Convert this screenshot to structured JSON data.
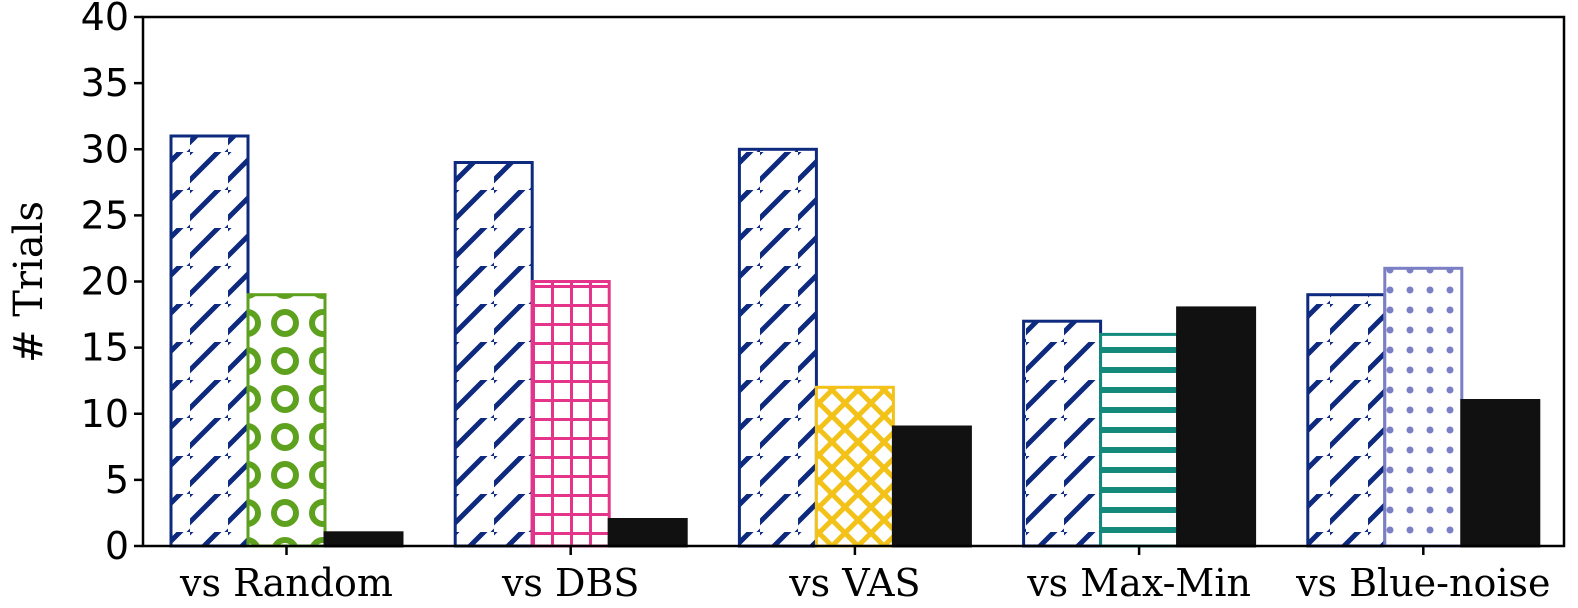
{
  "chart_data": {
    "type": "bar",
    "title": "",
    "xlabel": "",
    "ylabel": "# Trials",
    "ylim": [
      0,
      40
    ],
    "yticks": [
      0,
      5,
      10,
      15,
      20,
      25,
      30,
      35,
      40
    ],
    "categories": [
      "vs Random",
      "vs DBS",
      "vs VAS",
      "vs Max-Min",
      "vs Blue-noise"
    ],
    "groups": [
      {
        "category": "vs Random",
        "bars": [
          {
            "value": 31,
            "pattern": "diagonal",
            "color": "#0d2a7e"
          },
          {
            "value": 19,
            "pattern": "rings",
            "color": "#5ea11e"
          },
          {
            "value": 1,
            "pattern": "solid",
            "color": "#111111"
          }
        ]
      },
      {
        "category": "vs DBS",
        "bars": [
          {
            "value": 29,
            "pattern": "diagonal",
            "color": "#0d2a7e"
          },
          {
            "value": 20,
            "pattern": "grid",
            "color": "#e4358a"
          },
          {
            "value": 2,
            "pattern": "solid",
            "color": "#111111"
          }
        ]
      },
      {
        "category": "vs VAS",
        "bars": [
          {
            "value": 30,
            "pattern": "diagonal",
            "color": "#0d2a7e"
          },
          {
            "value": 12,
            "pattern": "crosshatch",
            "color": "#f2c219"
          },
          {
            "value": 9,
            "pattern": "solid",
            "color": "#111111"
          }
        ]
      },
      {
        "category": "vs Max-Min",
        "bars": [
          {
            "value": 17,
            "pattern": "diagonal",
            "color": "#0d2a7e"
          },
          {
            "value": 16,
            "pattern": "horizontal",
            "color": "#138a7c"
          },
          {
            "value": 18,
            "pattern": "solid",
            "color": "#111111"
          }
        ]
      },
      {
        "category": "vs Blue-noise",
        "bars": [
          {
            "value": 19,
            "pattern": "diagonal",
            "color": "#0d2a7e"
          },
          {
            "value": 21,
            "pattern": "dots",
            "color": "#7b7fc4"
          },
          {
            "value": 11,
            "pattern": "solid",
            "color": "#111111"
          }
        ]
      }
    ],
    "grid": false,
    "legend": "none"
  }
}
